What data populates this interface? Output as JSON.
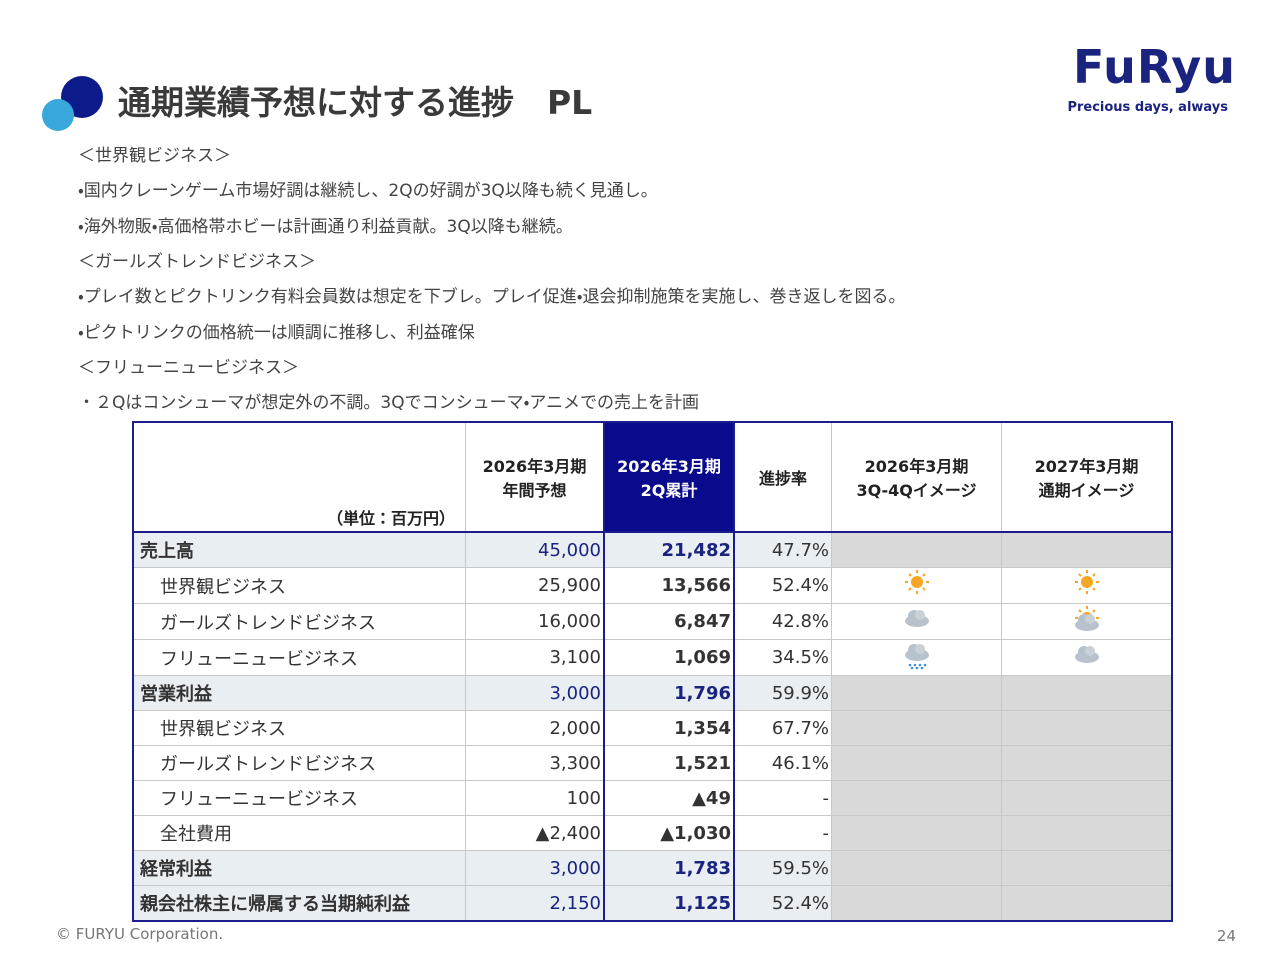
{
  "header": {
    "title": "通期業績予想に対する進捗　PL",
    "logo": "FuRyu",
    "tagline": "Precious days, always"
  },
  "notes": [
    "＜世界観ビジネス＞",
    "・国内クレーンゲーム市場好調は継続し、2Qの好調が3Q以降も続く見通し。",
    "・海外物販・高価格帯ホビーは計画通り利益貢献。3Q以降も継続。",
    "＜ガールズトレンドビジネス＞",
    "・プレイ数とピクトリンク有料会員数は想定を下ブレ。プレイ促進・退会抑制施策を実施し、巻き返しを図る。",
    "・ピクトリンクの価格統一は順調に推移し、利益確保",
    "＜フリューニュービジネス＞",
    "・２Qはコンシューマが想定外の不調。3Qでコンシューマ・アニメでの売上を計画"
  ],
  "table": {
    "unit": "（単位：百万円）",
    "columns": [
      [
        "2026年3月期",
        "年間予想"
      ],
      [
        "2026年3月期",
        "2Q累計"
      ],
      [
        "進捗率"
      ],
      [
        "2026年3月期",
        "3Q-4Qイメージ"
      ],
      [
        "2027年3月期",
        "通期イメージ"
      ]
    ],
    "rows": [
      [
        "売上高",
        "45,000",
        "21,482",
        "47.7%"
      ],
      [
        "世界観ビジネス",
        "25,900",
        "13,566",
        "52.4%"
      ],
      [
        "ガールズトレンドビジネス",
        "16,000",
        "6,847",
        "42.8%"
      ],
      [
        "フリューニュービジネス",
        "3,100",
        "1,069",
        "34.5%"
      ],
      [
        "営業利益",
        "3,000",
        "1,796",
        "59.9%"
      ],
      [
        "世界観ビジネス",
        "2,000",
        "1,354",
        "67.7%"
      ],
      [
        "ガールズトレンドビジネス",
        "3,300",
        "1,521",
        "46.1%"
      ],
      [
        "フリューニュービジネス",
        "100",
        "▲49",
        "-"
      ],
      [
        "全社費用",
        "▲2,400",
        "▲1,030",
        "-"
      ],
      [
        "経常利益",
        "3,000",
        "1,783",
        "59.5%"
      ],
      [
        "親会社株主に帰属する当期純利益",
        "2,150",
        "1,125",
        "52.4%"
      ]
    ]
  },
  "footer": {
    "copyright": "© FURYU Corporation.",
    "page": "24"
  }
}
